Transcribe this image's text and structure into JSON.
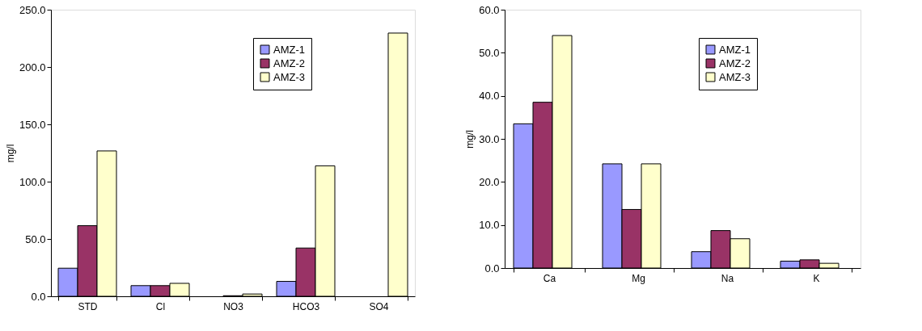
{
  "chart_data": [
    {
      "type": "bar",
      "ylabel": "mg/l",
      "categories": [
        "STD",
        "Cl",
        "NO3",
        "HCO3",
        "SO4"
      ],
      "series": [
        {
          "name": "AMZ-1",
          "color": "#9999ff",
          "values": [
            24.5,
            9.3,
            null,
            13.0,
            null
          ]
        },
        {
          "name": "AMZ-2",
          "color": "#993366",
          "values": [
            61.6,
            9.3,
            0.5,
            42.1,
            null
          ]
        },
        {
          "name": "AMZ-3",
          "color": "#ffffcc",
          "values": [
            126.8,
            11.3,
            2.0,
            113.8,
            229.6
          ]
        }
      ],
      "ylim": [
        0,
        250
      ],
      "yticks": [
        {
          "value": 0,
          "label": "0.0"
        },
        {
          "value": 50,
          "label": "50.0"
        },
        {
          "value": 100,
          "label": "100.0"
        },
        {
          "value": 150,
          "label": "150.0"
        },
        {
          "value": 200,
          "label": "200.0"
        },
        {
          "value": 250,
          "label": "250.0"
        }
      ],
      "grid": false,
      "legend": "top right"
    },
    {
      "type": "bar",
      "ylabel": "mg/l",
      "categories": [
        "Ca",
        "Mg",
        "Na",
        "K"
      ],
      "series": [
        {
          "name": "AMZ-1",
          "color": "#9999ff",
          "values": [
            33.5,
            24.2,
            3.8,
            1.6
          ]
        },
        {
          "name": "AMZ-2",
          "color": "#993366",
          "values": [
            38.5,
            13.6,
            8.7,
            1.9
          ]
        },
        {
          "name": "AMZ-3",
          "color": "#ffffcc",
          "values": [
            54.0,
            24.2,
            6.8,
            1.1
          ]
        }
      ],
      "ylim": [
        0,
        60
      ],
      "yticks": [
        {
          "value": 0,
          "label": "0.0"
        },
        {
          "value": 10,
          "label": "10.0"
        },
        {
          "value": 20,
          "label": "20.0"
        },
        {
          "value": 30,
          "label": "30.0"
        },
        {
          "value": 40,
          "label": "40.0"
        },
        {
          "value": 50,
          "label": "50.0"
        },
        {
          "value": 60,
          "label": "60.0"
        }
      ],
      "grid": false,
      "legend": "top right"
    }
  ]
}
